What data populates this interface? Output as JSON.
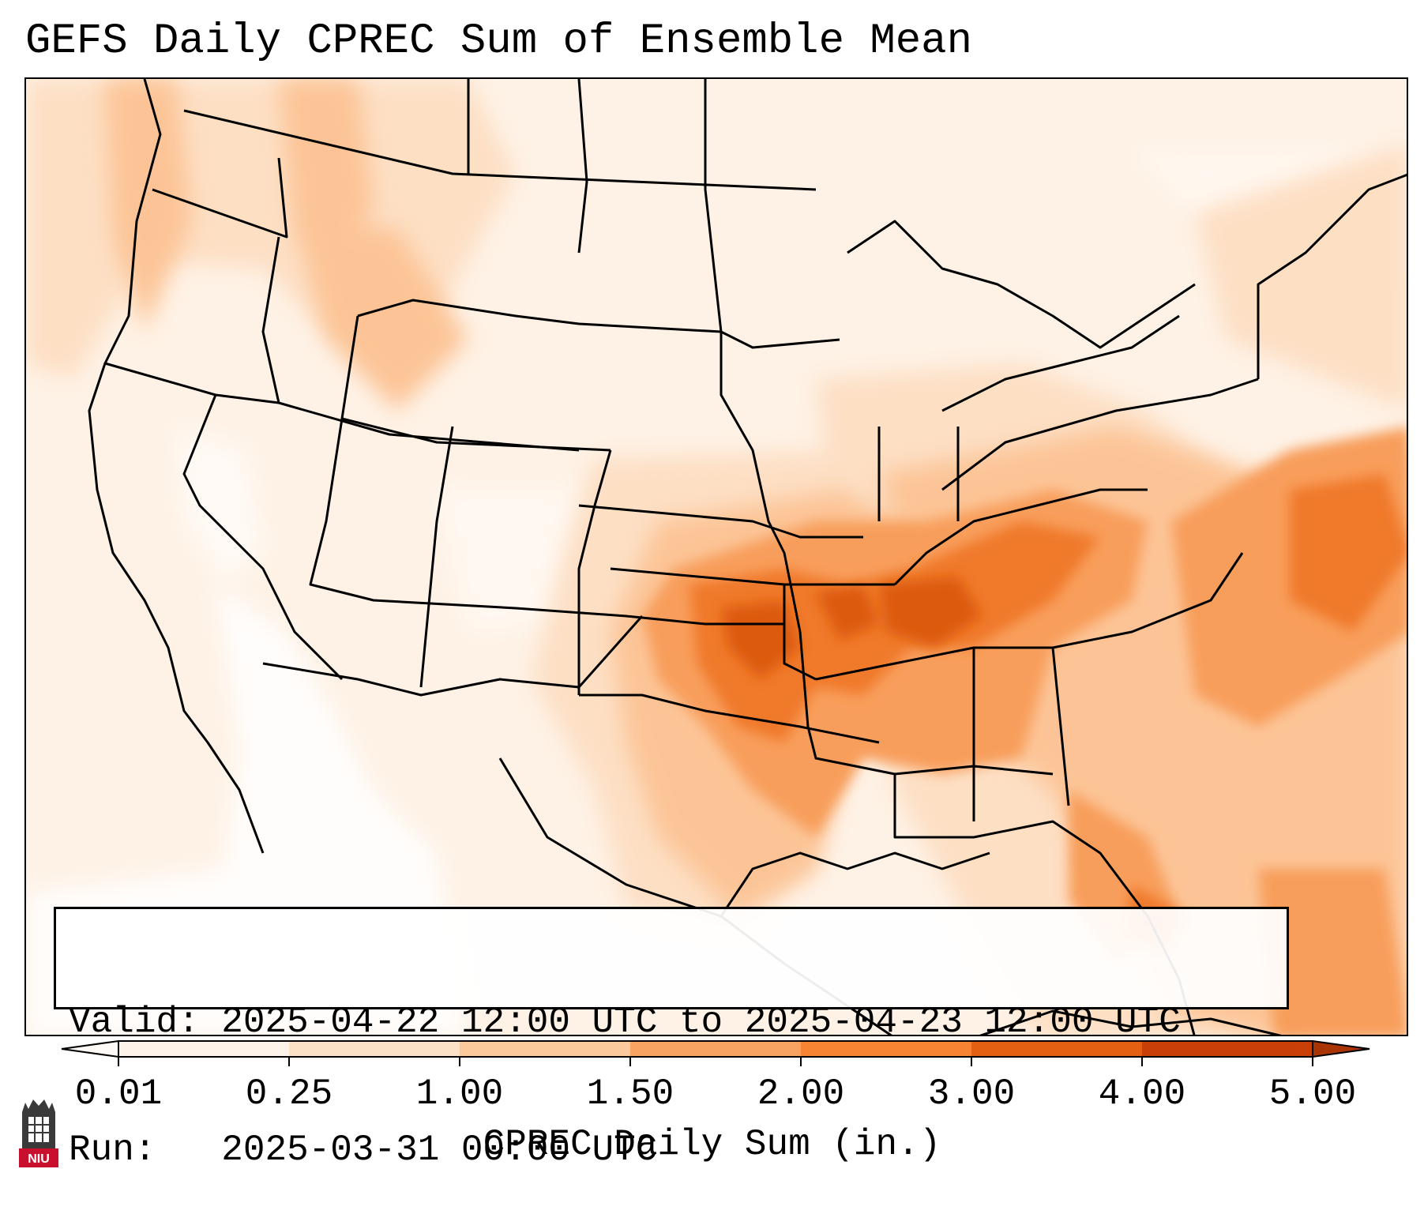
{
  "title": "GEFS Daily CPREC Sum of Ensemble Mean",
  "info": {
    "valid_label": "Valid:",
    "valid_value": "2025-04-22 12:00 UTC to 2025-04-23 12:00 UTC",
    "run_label": "Run:",
    "run_value": "2025-03-31 00:00 UTC"
  },
  "colorbar": {
    "label": "CPREC Daily Sum (in.)",
    "ticks": [
      "0.01",
      "0.25",
      "1.00",
      "1.50",
      "2.00",
      "3.00",
      "4.00",
      "5.00"
    ],
    "colors": [
      "#fef3e8",
      "#fde1c6",
      "#fcc99c",
      "#f9a363",
      "#f68432",
      "#e36012",
      "#c84008"
    ],
    "under_color": "#fffaf5",
    "over_color": "#a93404"
  },
  "logo": {
    "text": "NIU",
    "colors": {
      "tower": "#3a3a3a",
      "band": "#c8102e"
    }
  },
  "icons": {
    "logo": "niu-logo-icon"
  }
}
